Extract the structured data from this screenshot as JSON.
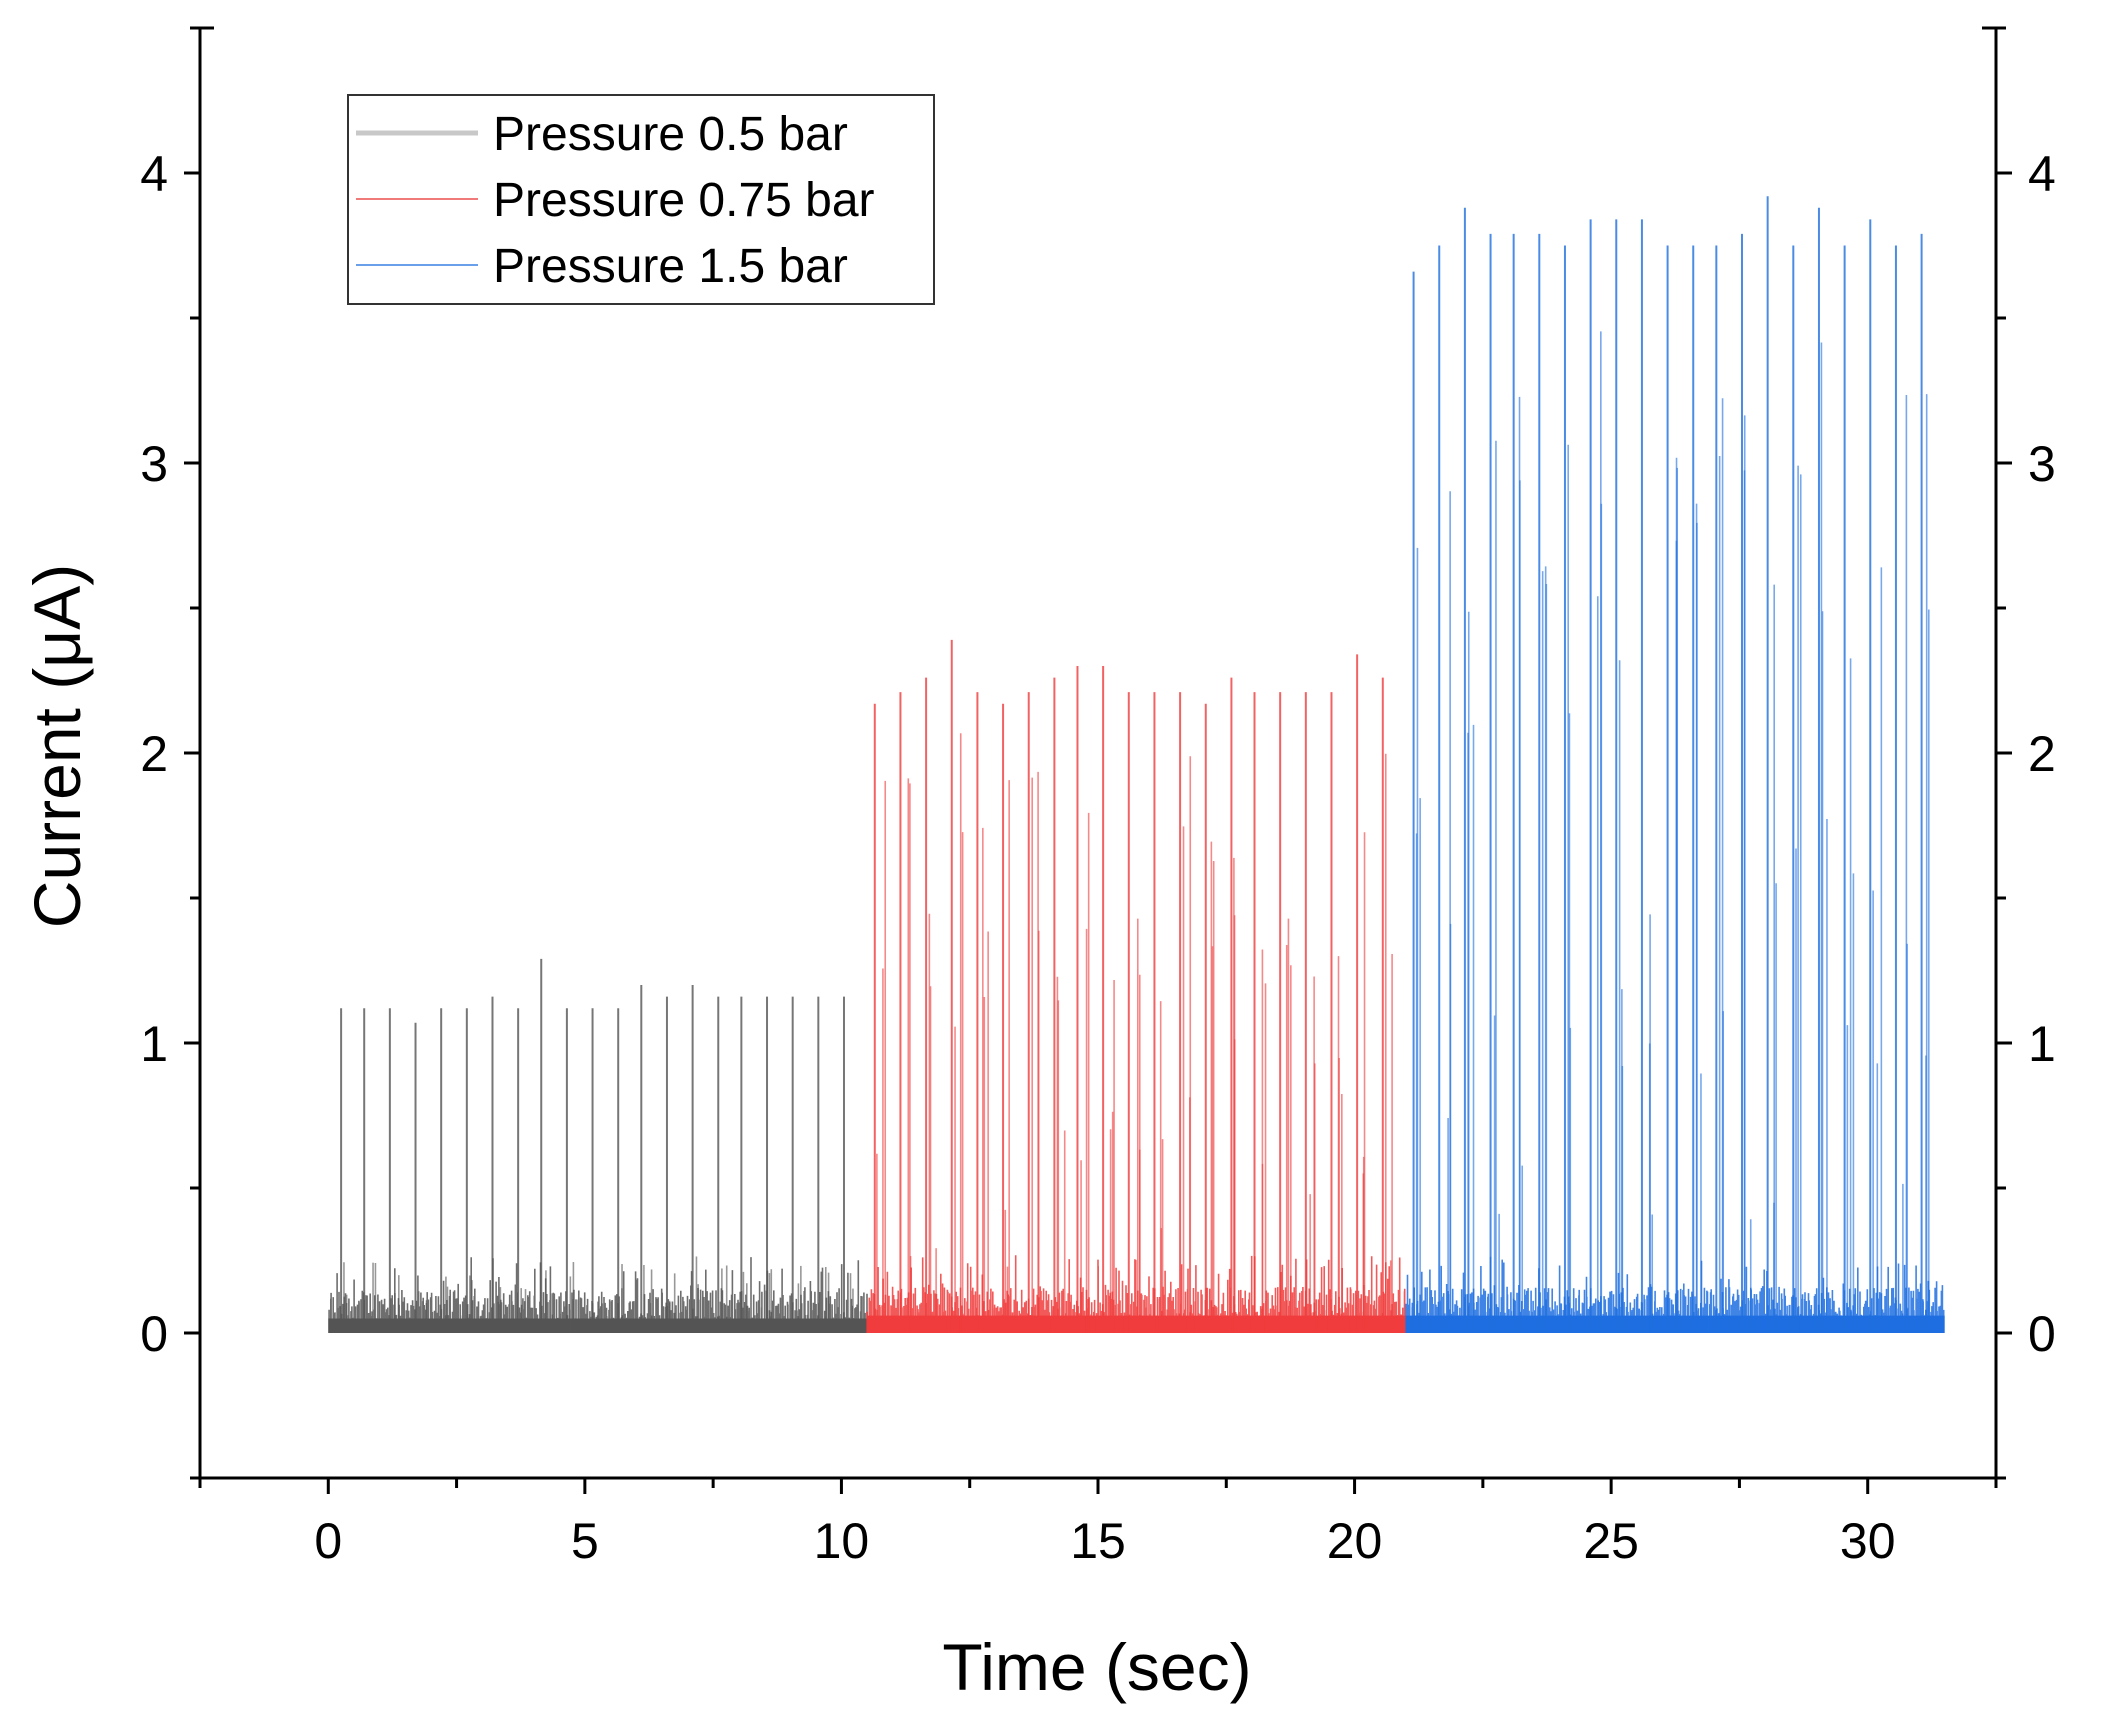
{
  "chart_data": {
    "type": "line",
    "title": "",
    "xlabel": "Time (sec)",
    "ylabel": "Current (μA)",
    "xlim": [
      -2.5,
      32.5
    ],
    "ylim": [
      -0.5,
      4.5
    ],
    "x_ticks": [
      0,
      5,
      10,
      15,
      20,
      25,
      30
    ],
    "y_ticks": [
      0,
      1,
      2,
      3,
      4
    ],
    "x_minor_step": 2.5,
    "y_minor_step": 0.5,
    "right_axis_mirror": true,
    "legend_position": "top-left",
    "series": [
      {
        "name": "Pressure 0.5 bar",
        "color": "#555555",
        "legend_color": "#c8c8c8",
        "t_start": 0,
        "t_end": 10.5,
        "baseline": 0.05,
        "spike_times": [
          0.25,
          0.7,
          1.2,
          1.7,
          2.2,
          2.7,
          3.2,
          3.7,
          4.15,
          4.65,
          5.15,
          5.65,
          6.1,
          6.6,
          7.1,
          7.6,
          8.05,
          8.55,
          9.05,
          9.55,
          10.05
        ],
        "spike_values": [
          1.12,
          1.12,
          1.12,
          1.07,
          1.12,
          1.12,
          1.16,
          1.12,
          1.29,
          1.12,
          1.12,
          1.12,
          1.2,
          1.16,
          1.2,
          1.16,
          1.16,
          1.16,
          1.16,
          1.16,
          1.16
        ]
      },
      {
        "name": "Pressure 0.75 bar",
        "color": "#f03c3c",
        "legend_color": "#f07a7a",
        "t_start": 10.5,
        "t_end": 21.0,
        "baseline": 0.06,
        "spike_times": [
          10.65,
          11.15,
          11.65,
          12.15,
          12.65,
          13.15,
          13.65,
          14.15,
          14.6,
          15.1,
          15.6,
          16.1,
          16.6,
          17.1,
          17.6,
          18.05,
          18.55,
          19.05,
          19.55,
          20.05,
          20.55
        ],
        "spike_values": [
          2.17,
          2.21,
          2.26,
          2.39,
          2.21,
          2.17,
          2.21,
          2.26,
          2.3,
          2.3,
          2.21,
          2.21,
          2.21,
          2.17,
          2.26,
          2.21,
          2.21,
          2.21,
          2.21,
          2.34,
          2.26
        ]
      },
      {
        "name": "Pressure 1.5 bar",
        "color": "#1e6fe0",
        "legend_color": "#6aa0ea",
        "t_start": 21.0,
        "t_end": 31.5,
        "baseline": 0.06,
        "spike_times": [
          21.15,
          21.65,
          22.15,
          22.65,
          23.1,
          23.6,
          24.1,
          24.6,
          25.1,
          25.6,
          26.1,
          26.6,
          27.05,
          27.55,
          28.05,
          28.55,
          29.05,
          29.55,
          30.05,
          30.55,
          31.05
        ],
        "spike_values": [
          3.66,
          3.75,
          3.88,
          3.79,
          3.79,
          3.79,
          3.75,
          3.84,
          3.84,
          3.84,
          3.75,
          3.75,
          3.75,
          3.79,
          3.92,
          3.75,
          3.88,
          3.75,
          3.84,
          3.75,
          3.79
        ]
      }
    ]
  }
}
